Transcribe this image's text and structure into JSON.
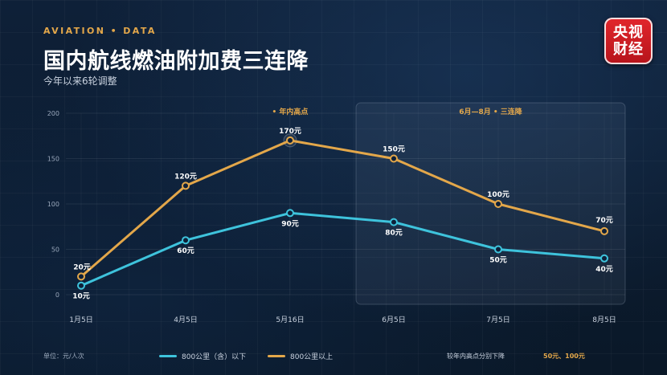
{
  "header": {
    "kicker": "AVIATION • DATA",
    "title": "国内航线燃油附加费三连降",
    "subtitle": "今年以来6轮调整"
  },
  "logo": {
    "line1": "央视",
    "line2": "财经"
  },
  "chart_data": {
    "type": "line",
    "categories": [
      "1月5日",
      "4月5日",
      "5月16日",
      "6月5日",
      "7月5日",
      "8月5日"
    ],
    "series": [
      {
        "name": "800公里（含）以下",
        "color": "#3ec3dc",
        "values": [
          10,
          60,
          90,
          80,
          50,
          40
        ],
        "labels": [
          "10元",
          "60元",
          "90元",
          "80元",
          "50元",
          "40元"
        ]
      },
      {
        "name": "800公里以上",
        "color": "#e3a74a",
        "values": [
          20,
          120,
          170,
          150,
          100,
          70
        ],
        "labels": [
          "20元",
          "120元",
          "170元",
          "150元",
          "100元",
          "70元"
        ]
      }
    ],
    "yticks": [
      0,
      50,
      100,
      150,
      200
    ],
    "ylim": [
      0,
      200
    ],
    "annotations": {
      "peak": "• 年内高点",
      "highlight": "6月—8月 • 三连降"
    },
    "highlight_range": [
      3,
      5
    ],
    "peak_index": 2
  },
  "footer": {
    "unit": "单位：元/人次",
    "note": "较年内高点分别下降",
    "note_value": "50元、100元"
  }
}
